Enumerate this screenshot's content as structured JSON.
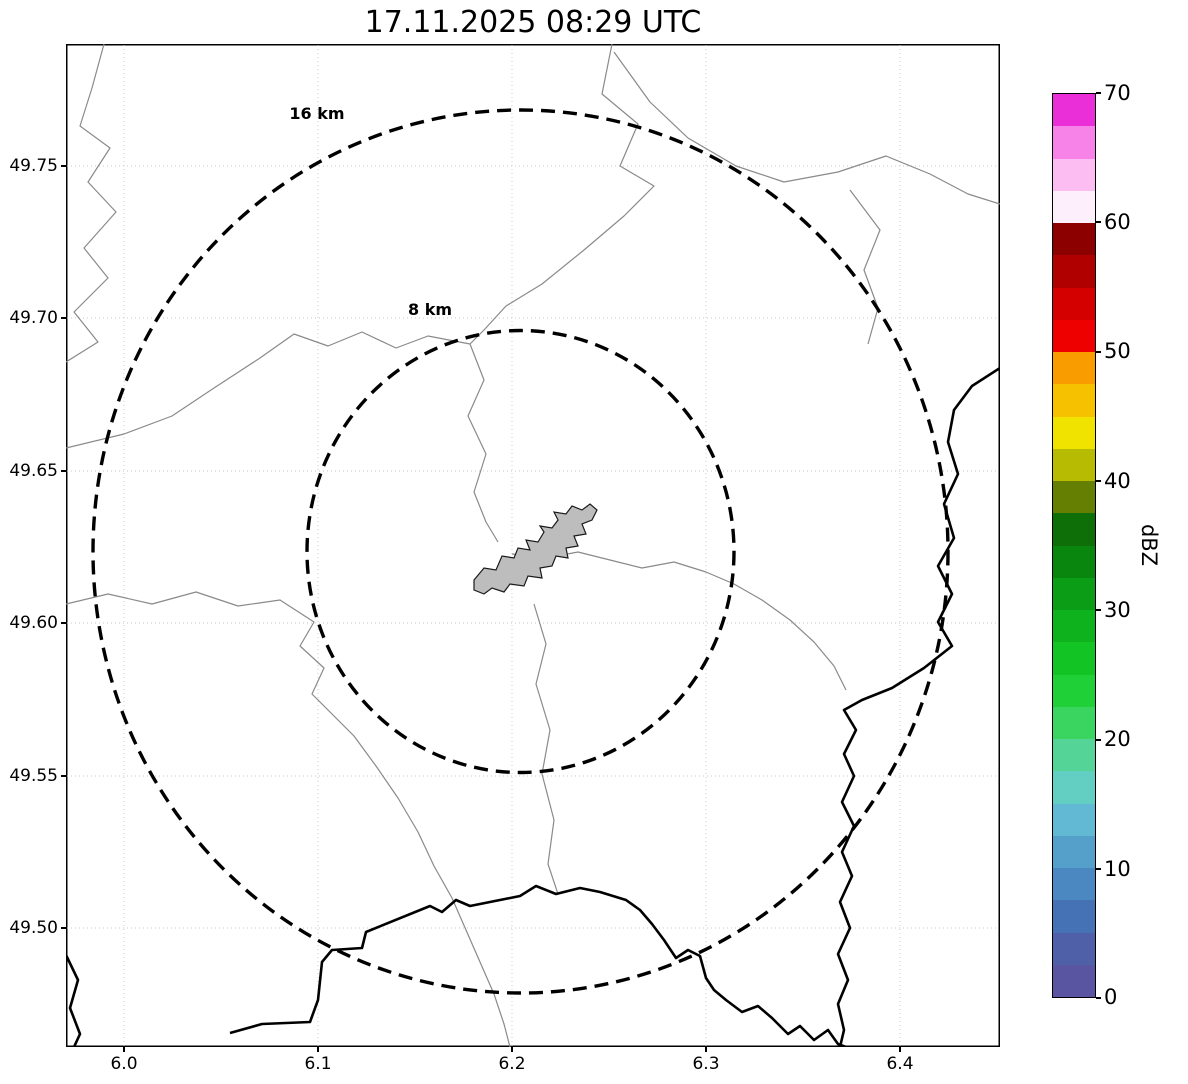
{
  "title": "17.11.2025 08:29 UTC",
  "map": {
    "range_rings": [
      {
        "label": "16 km"
      },
      {
        "label": "8 km"
      }
    ],
    "features": {
      "urban_area": "gray-filled-city-outline",
      "thin_lines": "administrative-boundaries",
      "thick_lines": "country-border-river"
    }
  },
  "axes": {
    "x_ticks": [
      "6.0",
      "6.1",
      "6.2",
      "6.3",
      "6.4"
    ],
    "y_ticks": [
      "49.75",
      "49.70",
      "49.65",
      "49.60",
      "49.55",
      "49.50"
    ]
  },
  "colorbar": {
    "label": "dBZ",
    "min": 0,
    "max": 70,
    "tick_labels_top_to_bottom": [
      "70",
      "60",
      "50",
      "40",
      "30",
      "20",
      "10",
      "0"
    ],
    "colors_bottom_to_top": [
      "#5a55a0",
      "#4f5fa8",
      "#4472b5",
      "#4b88c1",
      "#55a0cb",
      "#61b9d3",
      "#63cfc3",
      "#54d597",
      "#3ad460",
      "#1fd136",
      "#12c424",
      "#0eb21c",
      "#0a9d15",
      "#08860e",
      "#0e6e07",
      "#657f03",
      "#b7bb01",
      "#f0e300",
      "#f6c200",
      "#f99c00",
      "#ef0000",
      "#d40000",
      "#b00000",
      "#8c0000",
      "#fdeffb",
      "#fbbdf2",
      "#f783e8",
      "#ea2fd8"
    ]
  },
  "chart_data": {
    "type": "heatmap",
    "title": "17.11.2025 08:29 UTC",
    "xlabel": "",
    "ylabel": "",
    "x_ticks": [
      6.0,
      6.1,
      6.2,
      6.3,
      6.4
    ],
    "y_ticks": [
      49.5,
      49.55,
      49.6,
      49.65,
      49.7,
      49.75
    ],
    "x_range": [
      5.97,
      6.452
    ],
    "y_range": [
      49.461,
      49.79
    ],
    "colorbar_label": "dBZ",
    "colorbar_range": [
      0,
      70
    ],
    "colorbar_ticks": [
      0,
      10,
      20,
      30,
      40,
      50,
      60,
      70
    ],
    "range_rings_km": [
      8,
      16
    ],
    "ring_center_lon_lat": [
      6.204,
      49.624
    ],
    "radar_echoes_visible": "none"
  }
}
